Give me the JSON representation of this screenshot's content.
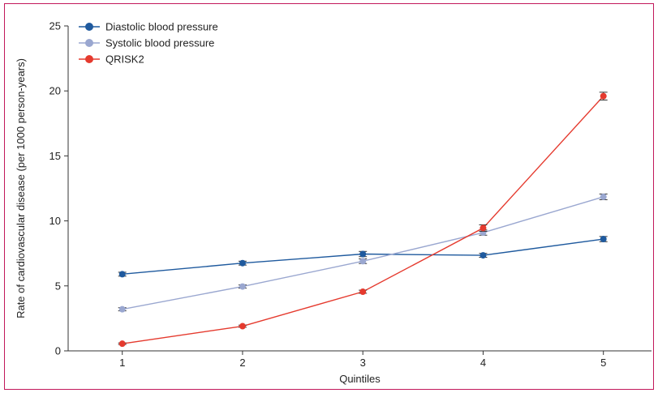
{
  "chart_data": {
    "type": "line",
    "title": "",
    "xlabel": "Quintiles",
    "ylabel": "Rate of cardiovascular disease (per 1000 person-years)",
    "categories": [
      "1",
      "2",
      "3",
      "4",
      "5"
    ],
    "x": [
      1,
      2,
      3,
      4,
      5
    ],
    "xlim": [
      0.55,
      5.4
    ],
    "ylim": [
      0,
      25
    ],
    "yticks": [
      0,
      5,
      10,
      15,
      20,
      25
    ],
    "xticks": [
      1,
      2,
      3,
      4,
      5
    ],
    "grid": false,
    "legend_position": "top-left",
    "error_bars": true,
    "series": [
      {
        "name": "Diastolic blood pressure",
        "color": "#1f5a9e",
        "values": [
          5.9,
          6.75,
          7.45,
          7.35,
          8.6
        ],
        "error": [
          0.15,
          0.15,
          0.2,
          0.15,
          0.2
        ]
      },
      {
        "name": "Systolic blood pressure",
        "color": "#9aa7d0",
        "values": [
          3.2,
          4.95,
          6.9,
          9.1,
          11.85
        ],
        "error": [
          0.12,
          0.12,
          0.18,
          0.2,
          0.22
        ]
      },
      {
        "name": "QRISK2",
        "color": "#e53a2e",
        "values": [
          0.55,
          1.9,
          4.55,
          9.45,
          19.6
        ],
        "error": [
          0.06,
          0.08,
          0.12,
          0.25,
          0.3
        ]
      }
    ]
  }
}
